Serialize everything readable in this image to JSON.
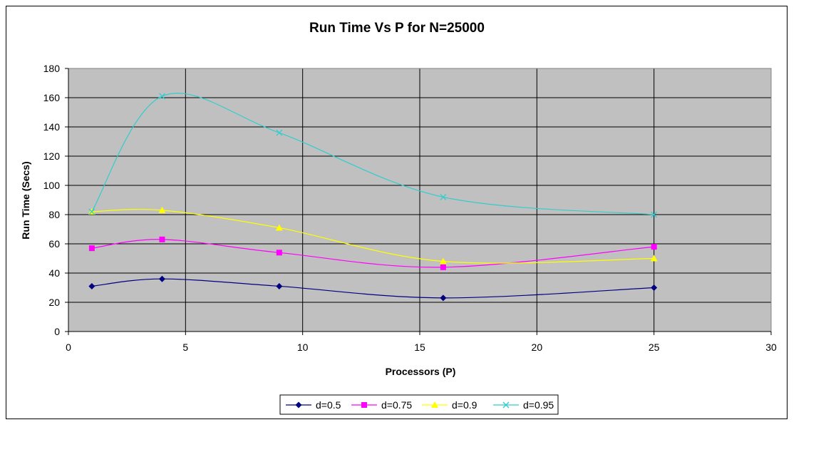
{
  "chart_data": {
    "type": "line",
    "title": "Run Time Vs P for N=25000",
    "xlabel": "Processors (P)",
    "ylabel": "Run Time (Secs)",
    "xlim": [
      0,
      30
    ],
    "ylim": [
      0,
      180
    ],
    "xticks": [
      0,
      5,
      10,
      15,
      20,
      25,
      30
    ],
    "yticks": [
      0,
      20,
      40,
      60,
      80,
      100,
      120,
      140,
      160,
      180
    ],
    "grid": true,
    "plot_background": "#C0C0C0",
    "legend_position": "bottom",
    "x": [
      1,
      4,
      9,
      16,
      25
    ],
    "series": [
      {
        "name": "d=0.5",
        "values": [
          31,
          36,
          31,
          23,
          30
        ],
        "color": "#000080",
        "marker": "diamond"
      },
      {
        "name": "d=0.75",
        "values": [
          57,
          63,
          54,
          44,
          58
        ],
        "color": "#FF00FF",
        "marker": "square"
      },
      {
        "name": "d=0.9",
        "values": [
          82,
          83,
          71,
          48,
          50
        ],
        "color": "#FFFF00",
        "marker": "triangle"
      },
      {
        "name": "d=0.95",
        "values": [
          82,
          161,
          136,
          92,
          80
        ],
        "color": "#33CCCC",
        "marker": "x"
      }
    ]
  }
}
